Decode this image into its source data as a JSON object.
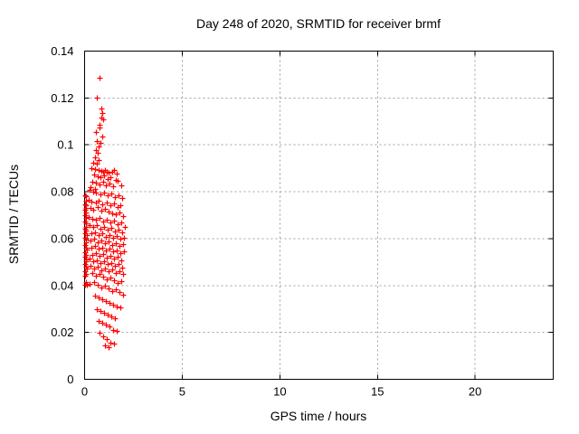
{
  "figure": {
    "title": "Day 248 of 2020, SRMTID for receiver brmf",
    "xlabel": "GPS time / hours",
    "ylabel": "SRMTID / TECUs"
  },
  "chart_data": {
    "type": "scatter",
    "title": "Day 248 of 2020, SRMTID for receiver brmf",
    "xlabel": "GPS time / hours",
    "ylabel": "SRMTID / TECUs",
    "xlim": [
      0,
      24
    ],
    "ylim": [
      0,
      0.14
    ],
    "x_ticks": [
      0,
      5,
      10,
      15,
      20
    ],
    "x_tick_labels": [
      "0",
      "5",
      "10",
      "15",
      "20"
    ],
    "y_ticks": [
      0,
      0.02,
      0.04,
      0.06,
      0.08,
      0.1,
      0.12,
      0.14
    ],
    "y_tick_labels": [
      "0",
      "0.02",
      "0.04",
      "0.06",
      "0.08",
      "0.1",
      "0.12",
      "0.14"
    ],
    "grid": true,
    "legend": "none",
    "marker": "plus",
    "marker_color": "#ff0000",
    "axis_color": "#000000",
    "grid_color": "#a0a0a0",
    "series": [
      {
        "name": "SRMTID",
        "points": [
          [
            0.03,
            0.0785
          ],
          [
            0.05,
            0.0762
          ],
          [
            0.02,
            0.0748
          ],
          [
            0.07,
            0.0741
          ],
          [
            0.04,
            0.0725
          ],
          [
            0.08,
            0.0712
          ],
          [
            0.03,
            0.0699
          ],
          [
            0.06,
            0.0688
          ],
          [
            0.02,
            0.0672
          ],
          [
            0.09,
            0.0665
          ],
          [
            0.05,
            0.0651
          ],
          [
            0.03,
            0.0643
          ],
          [
            0.07,
            0.0634
          ],
          [
            0.04,
            0.0622
          ],
          [
            0.1,
            0.0614
          ],
          [
            0.02,
            0.0603
          ],
          [
            0.06,
            0.0595
          ],
          [
            0.08,
            0.0583
          ],
          [
            0.03,
            0.0571
          ],
          [
            0.05,
            0.0562
          ],
          [
            0.11,
            0.0553
          ],
          [
            0.04,
            0.0541
          ],
          [
            0.07,
            0.0532
          ],
          [
            0.02,
            0.0521
          ],
          [
            0.09,
            0.0512
          ],
          [
            0.05,
            0.0502
          ],
          [
            0.03,
            0.0493
          ],
          [
            0.06,
            0.0481
          ],
          [
            0.1,
            0.0472
          ],
          [
            0.04,
            0.0461
          ],
          [
            0.08,
            0.0449
          ],
          [
            0.02,
            0.0441
          ],
          [
            0.06,
            0.0415
          ],
          [
            0.12,
            0.0403
          ],
          [
            0.05,
            0.0782
          ],
          [
            0.09,
            0.0732
          ],
          [
            0.04,
            0.0402
          ],
          [
            0.77,
            0.1287
          ],
          [
            0.63,
            0.12
          ],
          [
            0.87,
            0.1156
          ],
          [
            0.91,
            0.1136
          ],
          [
            0.86,
            0.1118
          ],
          [
            0.95,
            0.1108
          ],
          [
            0.77,
            0.1087
          ],
          [
            0.75,
            0.1073
          ],
          [
            0.6,
            0.1053
          ],
          [
            0.91,
            0.1036
          ],
          [
            0.64,
            0.1018
          ],
          [
            0.8,
            0.1009
          ],
          [
            0.71,
            0.0992
          ],
          [
            0.58,
            0.0979
          ],
          [
            0.67,
            0.0967
          ],
          [
            0.53,
            0.0945
          ],
          [
            0.72,
            0.0937
          ],
          [
            0.44,
            0.0922
          ],
          [
            0.63,
            0.0918
          ],
          [
            0.36,
            0.0902
          ],
          [
            0.55,
            0.0898
          ],
          [
            0.72,
            0.0893
          ],
          [
            0.86,
            0.0889
          ],
          [
            0.95,
            0.0887
          ],
          [
            1.05,
            0.0891
          ],
          [
            1.14,
            0.0884
          ],
          [
            1.25,
            0.088
          ],
          [
            1.4,
            0.0886
          ],
          [
            1.51,
            0.0893
          ],
          [
            1.63,
            0.0879
          ],
          [
            0.48,
            0.0872
          ],
          [
            0.67,
            0.0866
          ],
          [
            0.82,
            0.0861
          ],
          [
            1.0,
            0.0868
          ],
          [
            1.18,
            0.0856
          ],
          [
            1.33,
            0.0862
          ],
          [
            1.58,
            0.0851
          ],
          [
            0.39,
            0.0843
          ],
          [
            0.58,
            0.0838
          ],
          [
            0.77,
            0.0833
          ],
          [
            0.93,
            0.0841
          ],
          [
            1.09,
            0.0828
          ],
          [
            1.28,
            0.0835
          ],
          [
            1.47,
            0.0822
          ],
          [
            1.7,
            0.0846
          ],
          [
            1.86,
            0.0827
          ],
          [
            0.3,
            0.0818
          ],
          [
            0.51,
            0.0812
          ],
          [
            0.25,
            0.0808
          ],
          [
            0.42,
            0.0802
          ],
          [
            0.6,
            0.0795
          ],
          [
            0.79,
            0.0789
          ],
          [
            0.98,
            0.0797
          ],
          [
            1.16,
            0.0783
          ],
          [
            1.35,
            0.0791
          ],
          [
            1.53,
            0.0778
          ],
          [
            1.72,
            0.0785
          ],
          [
            1.91,
            0.0772
          ],
          [
            0.21,
            0.0766
          ],
          [
            0.37,
            0.0759
          ],
          [
            0.56,
            0.0753
          ],
          [
            0.74,
            0.0761
          ],
          [
            0.91,
            0.0747
          ],
          [
            1.12,
            0.0755
          ],
          [
            1.3,
            0.0742
          ],
          [
            1.49,
            0.0749
          ],
          [
            1.67,
            0.0736
          ],
          [
            1.84,
            0.0744
          ],
          [
            0.28,
            0.0731
          ],
          [
            0.46,
            0.0725
          ],
          [
            0.65,
            0.0733
          ],
          [
            0.84,
            0.0721
          ],
          [
            1.02,
            0.0728
          ],
          [
            1.21,
            0.0716
          ],
          [
            1.39,
            0.0709
          ],
          [
            1.58,
            0.0702
          ],
          [
            1.77,
            0.0711
          ],
          [
            1.95,
            0.0697
          ],
          [
            0.23,
            0.0692
          ],
          [
            0.4,
            0.0686
          ],
          [
            0.59,
            0.0679
          ],
          [
            0.78,
            0.0687
          ],
          [
            0.96,
            0.0673
          ],
          [
            1.14,
            0.0681
          ],
          [
            1.33,
            0.0668
          ],
          [
            1.51,
            0.0675
          ],
          [
            1.7,
            0.0662
          ],
          [
            1.88,
            0.0669
          ],
          [
            0.26,
            0.0656
          ],
          [
            0.44,
            0.0649
          ],
          [
            0.63,
            0.0657
          ],
          [
            0.81,
            0.0644
          ],
          [
            1.0,
            0.0651
          ],
          [
            1.19,
            0.0638
          ],
          [
            1.37,
            0.0645
          ],
          [
            1.56,
            0.0632
          ],
          [
            1.74,
            0.0639
          ],
          [
            1.93,
            0.0626
          ],
          [
            2.05,
            0.0648
          ],
          [
            0.33,
            0.0621
          ],
          [
            0.52,
            0.0628
          ],
          [
            0.7,
            0.0615
          ],
          [
            0.89,
            0.0622
          ],
          [
            1.07,
            0.0609
          ],
          [
            1.26,
            0.0616
          ],
          [
            1.44,
            0.0603
          ],
          [
            1.63,
            0.0611
          ],
          [
            1.81,
            0.0598
          ],
          [
            2.0,
            0.0605
          ],
          [
            0.29,
            0.0592
          ],
          [
            0.47,
            0.0599
          ],
          [
            0.66,
            0.0586
          ],
          [
            0.85,
            0.0593
          ],
          [
            1.03,
            0.058
          ],
          [
            1.22,
            0.0587
          ],
          [
            1.4,
            0.0574
          ],
          [
            1.59,
            0.0581
          ],
          [
            1.77,
            0.0568
          ],
          [
            1.96,
            0.0575
          ],
          [
            0.35,
            0.0562
          ],
          [
            0.54,
            0.0569
          ],
          [
            0.73,
            0.0556
          ],
          [
            0.91,
            0.0563
          ],
          [
            1.1,
            0.055
          ],
          [
            1.28,
            0.0557
          ],
          [
            1.47,
            0.0544
          ],
          [
            1.65,
            0.0551
          ],
          [
            1.84,
            0.0538
          ],
          [
            2.03,
            0.0545
          ],
          [
            0.41,
            0.0532
          ],
          [
            0.6,
            0.0539
          ],
          [
            0.78,
            0.0526
          ],
          [
            0.97,
            0.0533
          ],
          [
            1.15,
            0.052
          ],
          [
            1.34,
            0.0527
          ],
          [
            1.52,
            0.0514
          ],
          [
            1.71,
            0.0521
          ],
          [
            1.89,
            0.0508
          ],
          [
            0.24,
            0.0515
          ],
          [
            0.45,
            0.0502
          ],
          [
            0.64,
            0.0509
          ],
          [
            0.83,
            0.0496
          ],
          [
            1.01,
            0.0503
          ],
          [
            1.2,
            0.049
          ],
          [
            1.38,
            0.0497
          ],
          [
            1.57,
            0.0484
          ],
          [
            1.75,
            0.0491
          ],
          [
            1.94,
            0.0478
          ],
          [
            0.31,
            0.0485
          ],
          [
            0.5,
            0.0472
          ],
          [
            0.69,
            0.0479
          ],
          [
            0.87,
            0.0466
          ],
          [
            1.06,
            0.0473
          ],
          [
            1.24,
            0.046
          ],
          [
            1.43,
            0.0467
          ],
          [
            1.61,
            0.0454
          ],
          [
            1.8,
            0.0461
          ],
          [
            1.98,
            0.0448
          ],
          [
            0.38,
            0.0455
          ],
          [
            0.57,
            0.0442
          ],
          [
            0.75,
            0.0449
          ],
          [
            0.94,
            0.0436
          ],
          [
            1.12,
            0.0427
          ],
          [
            1.31,
            0.0434
          ],
          [
            1.49,
            0.0421
          ],
          [
            1.68,
            0.0412
          ],
          [
            1.86,
            0.0419
          ],
          [
            0.27,
            0.0408
          ],
          [
            0.48,
            0.0415
          ],
          [
            0.67,
            0.0402
          ],
          [
            0.86,
            0.0393
          ],
          [
            1.04,
            0.0399
          ],
          [
            1.23,
            0.0386
          ],
          [
            1.41,
            0.0377
          ],
          [
            1.6,
            0.0384
          ],
          [
            1.78,
            0.0371
          ],
          [
            1.97,
            0.0362
          ],
          [
            0.55,
            0.0356
          ],
          [
            0.74,
            0.0348
          ],
          [
            0.92,
            0.0341
          ],
          [
            1.11,
            0.0334
          ],
          [
            1.29,
            0.0327
          ],
          [
            1.48,
            0.0319
          ],
          [
            1.66,
            0.0312
          ],
          [
            1.85,
            0.0305
          ],
          [
            0.63,
            0.0298
          ],
          [
            0.82,
            0.0291
          ],
          [
            1.0,
            0.0284
          ],
          [
            1.19,
            0.0277
          ],
          [
            1.37,
            0.0269
          ],
          [
            1.56,
            0.0262
          ],
          [
            0.71,
            0.0248
          ],
          [
            0.9,
            0.0241
          ],
          [
            1.08,
            0.0234
          ],
          [
            1.27,
            0.0226
          ],
          [
            1.45,
            0.0212
          ],
          [
            1.64,
            0.0205
          ],
          [
            0.78,
            0.0198
          ],
          [
            0.97,
            0.0185
          ],
          [
            1.15,
            0.0172
          ],
          [
            1.34,
            0.0158
          ],
          [
            1.52,
            0.0151
          ],
          [
            1.05,
            0.0143
          ],
          [
            1.23,
            0.0136
          ]
        ]
      }
    ]
  }
}
